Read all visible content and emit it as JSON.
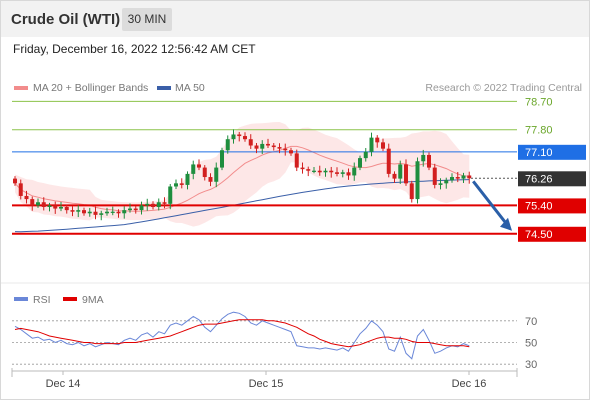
{
  "header": {
    "title": "Crude Oil (WTI)",
    "timeframe": "30 MIN"
  },
  "datetime": "Friday, December 16, 2022 12:56:42 AM CET",
  "attribution": "Research © 2022 Trading Central",
  "colors": {
    "bollinger_band": "#f08080",
    "bollinger_fill": "#fde4e4",
    "ma20": "#f28c8c",
    "ma50": "#3a5fa8",
    "resistance_green": "#8cc34a",
    "pivot_blue": "#1f6fe5",
    "support_red": "#e00000",
    "candle_up": "#1e8e3e",
    "candle_down": "#d21f1f",
    "last_price": "#333333",
    "forecast_arrow": "#2a5fa8",
    "rsi": "#6a87d8",
    "rsi_ma": "#e00000"
  },
  "chart_data": [
    {
      "type": "candlestick",
      "title": "Crude Oil (WTI)",
      "timeframe": "30 MIN",
      "legend": [
        {
          "name": "MA 20 + Bollinger Bands",
          "color": "#f28c8c"
        },
        {
          "name": "MA 50",
          "color": "#3a5fa8"
        }
      ],
      "ylim": [
        73.7,
        79.6
      ],
      "x_ticks": [
        "Dec 14",
        "Dec 15",
        "Dec 16"
      ],
      "levels": [
        {
          "value": 78.7,
          "label": "78.70",
          "kind": "resistance",
          "color": "#8cc34a"
        },
        {
          "value": 77.8,
          "label": "77.80",
          "kind": "resistance",
          "color": "#8cc34a"
        },
        {
          "value": 77.1,
          "label": "77.10",
          "kind": "pivot",
          "color": "#1f6fe5"
        },
        {
          "value": 75.4,
          "label": "75.40",
          "kind": "support",
          "color": "#e00000"
        },
        {
          "value": 74.5,
          "label": "74.50",
          "kind": "support",
          "color": "#e00000"
        }
      ],
      "last_price": {
        "value": 76.26,
        "label": "76.26"
      },
      "forecast_target": 74.5,
      "candle_closes": [
        76.1,
        75.7,
        75.6,
        75.4,
        75.5,
        75.35,
        75.4,
        75.3,
        75.35,
        75.25,
        75.2,
        75.25,
        75.15,
        75.2,
        75.1,
        75.15,
        75.2,
        75.2,
        75.15,
        75.25,
        75.3,
        75.25,
        75.4,
        75.45,
        75.35,
        75.5,
        75.45,
        76.0,
        76.1,
        76.05,
        76.4,
        76.7,
        76.6,
        76.3,
        76.15,
        76.6,
        77.15,
        77.5,
        77.65,
        77.6,
        77.5,
        77.3,
        77.2,
        77.35,
        77.3,
        77.25,
        77.2,
        77.15,
        77.05,
        76.6,
        76.55,
        76.5,
        76.5,
        76.45,
        76.5,
        76.45,
        76.4,
        76.45,
        76.35,
        76.6,
        76.9,
        77.1,
        77.55,
        77.4,
        77.2,
        76.4,
        76.25,
        76.7,
        76.1,
        75.6,
        76.8,
        77.0,
        76.6,
        76.05,
        76.1,
        76.2,
        76.3,
        76.25,
        76.35,
        76.26
      ]
    },
    {
      "type": "line",
      "title": "RSI",
      "series": [
        {
          "name": "RSI",
          "color": "#6a87d8",
          "values": [
            65,
            62,
            58,
            54,
            55,
            52,
            53,
            50,
            52,
            49,
            48,
            50,
            47,
            49,
            46,
            48,
            50,
            49,
            48,
            52,
            54,
            52,
            57,
            59,
            55,
            60,
            58,
            66,
            68,
            66,
            70,
            74,
            71,
            64,
            60,
            66,
            72,
            76,
            78,
            77,
            74,
            68,
            66,
            70,
            68,
            66,
            64,
            62,
            60,
            47,
            46,
            45,
            45,
            44,
            45,
            44,
            43,
            45,
            42,
            50,
            58,
            63,
            70,
            66,
            60,
            44,
            42,
            55,
            40,
            35,
            56,
            62,
            52,
            40,
            42,
            45,
            47,
            46,
            49,
            47
          ]
        },
        {
          "name": "9MA",
          "color": "#e00000",
          "values": [
            62,
            63,
            62,
            61,
            60,
            58,
            56,
            55,
            54,
            53,
            52,
            51,
            50,
            50,
            49,
            49,
            49,
            49,
            49,
            50,
            50,
            50,
            51,
            52,
            53,
            54,
            55,
            56,
            58,
            60,
            62,
            64,
            66,
            67,
            67,
            67,
            68,
            69,
            70,
            71,
            71,
            71,
            71,
            71,
            70,
            70,
            69,
            68,
            66,
            64,
            61,
            58,
            56,
            53,
            51,
            49,
            48,
            47,
            46,
            47,
            48,
            50,
            52,
            54,
            55,
            55,
            54,
            54,
            53,
            51,
            50,
            50,
            50,
            49,
            48,
            47,
            47,
            47,
            47,
            46
          ]
        }
      ],
      "ylim": [
        20,
        80
      ],
      "y_ticks": [
        30,
        50,
        70
      ],
      "x_ticks": [
        "Dec 14",
        "Dec 15",
        "Dec 16"
      ]
    }
  ]
}
